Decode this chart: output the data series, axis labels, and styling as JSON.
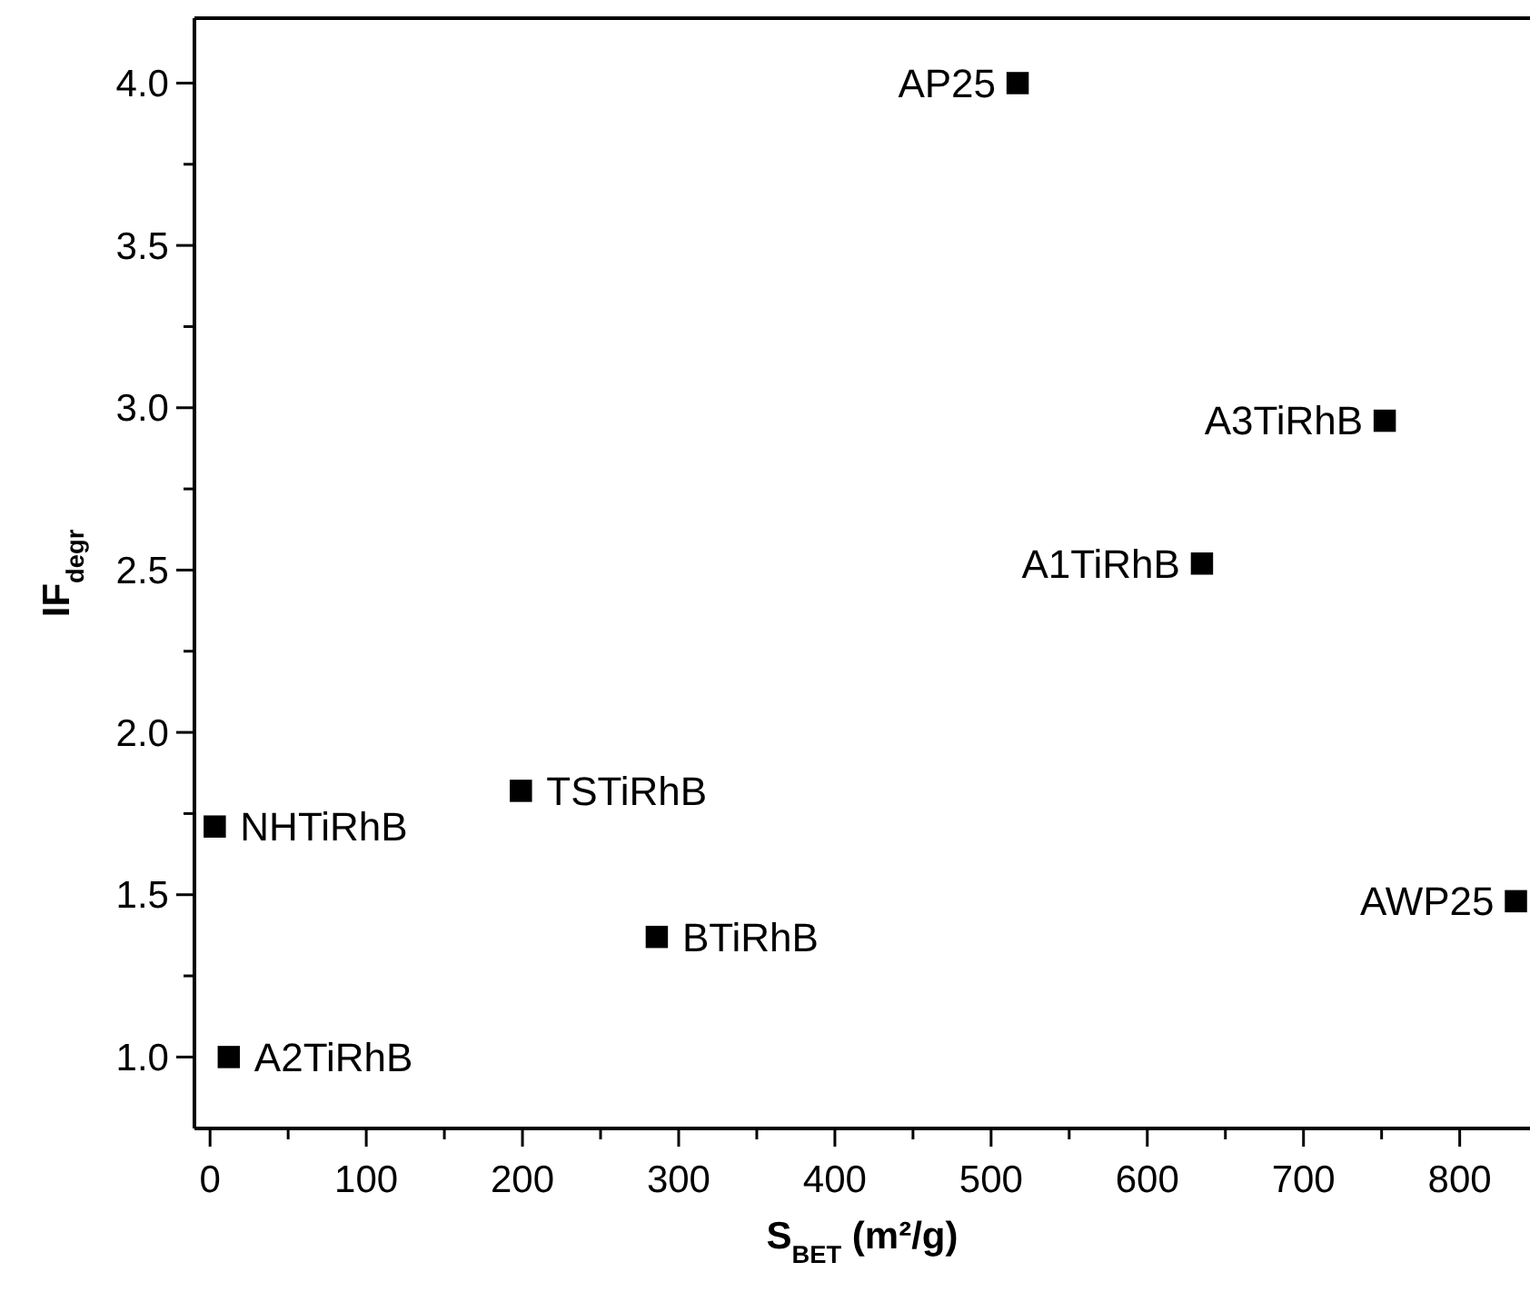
{
  "chart_data": {
    "type": "scatter",
    "xlabel": "S$_{BET}$ (m²/g)",
    "ylabel": "IF$_{degr}$",
    "x": [
      517,
      752,
      635,
      836,
      199,
      3,
      286,
      12
    ],
    "series": [
      {
        "color": "#000000",
        "values": [
          4.0,
          2.96,
          2.52,
          1.48,
          1.82,
          1.71,
          1.37,
          1.0
        ]
      }
    ],
    "marker": "square",
    "grid": false,
    "xlim": [
      -10,
      845
    ],
    "ylim": [
      0.78,
      4.2
    ],
    "xticks": [
      0,
      {
        "value": 50,
        "label": null
      },
      100,
      {
        "value": 150,
        "label": null
      },
      200,
      {
        "value": 250,
        "label": null
      },
      300,
      {
        "value": 350,
        "label": null
      },
      400,
      {
        "value": 450,
        "label": null
      },
      500,
      {
        "value": 550,
        "label": null
      },
      600,
      {
        "value": 650,
        "label": null
      },
      700,
      {
        "value": 750,
        "label": null
      },
      800
    ],
    "yticks": [
      {
        "value": 1,
        "label": "1.0"
      },
      {
        "value": 1.25,
        "label": null
      },
      {
        "value": 1.5,
        "label": "1.5"
      },
      {
        "value": 1.75,
        "label": null
      },
      {
        "value": 2,
        "label": "2.0"
      },
      {
        "value": 2.25,
        "label": null
      },
      {
        "value": 2.5,
        "label": "2.5"
      },
      {
        "value": 2.75,
        "label": null
      },
      {
        "value": 3,
        "label": "3.0"
      },
      {
        "value": 3.25,
        "label": null
      },
      {
        "value": 3.5,
        "label": "3.5"
      },
      {
        "value": 3.75,
        "label": null
      },
      {
        "value": 4,
        "label": "4.0"
      }
    ],
    "annotations": [
      {
        "text": "AP25",
        "x": 517,
        "y": 4.0
      },
      {
        "text": "A3TiRhB",
        "x": 752,
        "y": 2.96
      },
      {
        "text": "A1TiRhB",
        "x": 635,
        "y": 2.52
      },
      {
        "text": "AWP25",
        "x": 836,
        "y": 1.48
      },
      {
        "text": "TSTiRhB",
        "x": 199,
        "y": 1.82
      },
      {
        "text": "NHTiRhB",
        "x": 3,
        "y": 1.71
      },
      {
        "text": "BTiRhB",
        "x": 286,
        "y": 1.37
      },
      {
        "text": "A2TiRhB",
        "x": 12,
        "y": 1.0
      }
    ]
  }
}
